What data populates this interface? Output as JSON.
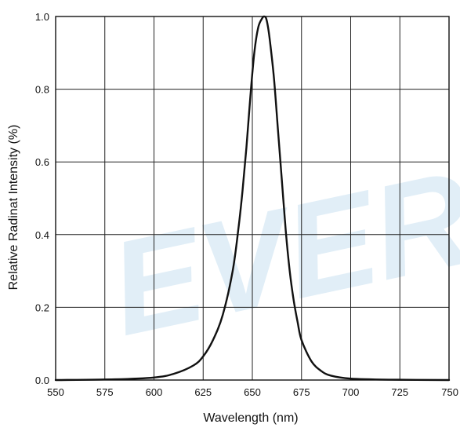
{
  "chart_data": {
    "type": "line",
    "title": "",
    "xlabel": "Wavelength (nm)",
    "ylabel": "Relative Radinat Intensity (%)",
    "xlim": [
      550,
      750
    ],
    "ylim": [
      0,
      1.0
    ],
    "xticks": [
      550,
      575,
      600,
      625,
      650,
      675,
      700,
      725,
      750
    ],
    "yticks": [
      0.0,
      0.2,
      0.4,
      0.6,
      0.8,
      1.0
    ],
    "xtick_labels": [
      "550",
      "575",
      "600",
      "625",
      "650",
      "675",
      "700",
      "725",
      "750"
    ],
    "ytick_labels": [
      "0.0",
      "0.2",
      "0.4",
      "0.6",
      "0.8",
      "1.0"
    ],
    "grid": true,
    "legend": "none",
    "watermark": "EVER",
    "line_color": "#111111",
    "series": [
      {
        "x": [
          550,
          580,
          600,
          610,
          620,
          625,
          630,
          635,
          640,
          643,
          645,
          647,
          649,
          651,
          653,
          655,
          656,
          657,
          658,
          659,
          661,
          663,
          665,
          667,
          669,
          671,
          673,
          675,
          680,
          685,
          690,
          700,
          720,
          750
        ],
        "y": [
          0.0,
          0.002,
          0.007,
          0.017,
          0.04,
          0.065,
          0.11,
          0.18,
          0.3,
          0.42,
          0.52,
          0.64,
          0.78,
          0.9,
          0.97,
          0.995,
          1.0,
          0.995,
          0.97,
          0.93,
          0.83,
          0.69,
          0.55,
          0.41,
          0.3,
          0.22,
          0.16,
          0.11,
          0.052,
          0.025,
          0.012,
          0.004,
          0.001,
          0.0
        ]
      }
    ]
  }
}
